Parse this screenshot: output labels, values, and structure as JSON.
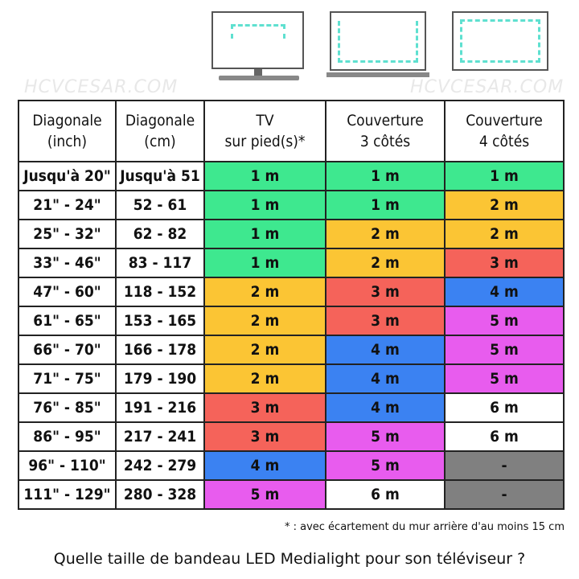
{
  "watermark": "HCVCESAR.COM",
  "table": {
    "headers": [
      [
        "Diagonale",
        "(inch)"
      ],
      [
        "Diagonale",
        "(cm)"
      ],
      [
        "TV",
        "sur pied(s)*"
      ],
      [
        "Couverture",
        "3 côtés"
      ],
      [
        "Couverture",
        "4 côtés"
      ]
    ],
    "rows": [
      [
        "Jusqu'à 20\"",
        "Jusqu'à 51",
        "1 m",
        "1 m",
        "1 m"
      ],
      [
        "21\" - 24\"",
        "52 - 61",
        "1 m",
        "1 m",
        "2 m"
      ],
      [
        "25\" - 32\"",
        "62 - 82",
        "1 m",
        "2 m",
        "2 m"
      ],
      [
        "33\" - 46\"",
        "83 - 117",
        "1 m",
        "2 m",
        "3 m"
      ],
      [
        "47\" - 60\"",
        "118 - 152",
        "2 m",
        "3 m",
        "4 m"
      ],
      [
        "61\" - 65\"",
        "153 - 165",
        "2 m",
        "3 m",
        "5 m"
      ],
      [
        "66\" - 70\"",
        "166 - 178",
        "2 m",
        "4 m",
        "5 m"
      ],
      [
        "71\" - 75\"",
        "179 - 190",
        "2 m",
        "4 m",
        "5 m"
      ],
      [
        "76\" - 85\"",
        "191 - 216",
        "3 m",
        "4 m",
        "6 m"
      ],
      [
        "86\" - 95\"",
        "217 - 241",
        "3 m",
        "5 m",
        "6 m"
      ],
      [
        "96\" - 110\"",
        "242 - 279",
        "4 m",
        "5 m",
        "-"
      ],
      [
        "111\" - 129\"",
        "280 - 328",
        "5 m",
        "6 m",
        "-"
      ]
    ]
  },
  "colors": {
    "1 m": "#3ee88f",
    "2 m": "#fbc534",
    "3 m": "#f5635a",
    "4 m": "#3b82f2",
    "5 m": "#e85cee",
    "6 m": "#ffffff",
    "-": "#808080"
  },
  "footnote": "* : avec écartement du mur arrière d'au moins 15 cm",
  "caption": "Quelle taille de bandeau LED Medialight pour son téléviseur ?"
}
